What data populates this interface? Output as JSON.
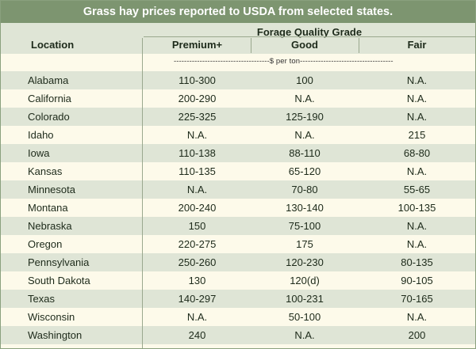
{
  "title": "Grass hay prices reported to USDA from selected states.",
  "header": {
    "location": "Location",
    "group": "Forage Quality Grade",
    "grades": [
      "Premium+",
      "Good",
      "Fair"
    ]
  },
  "units": "-------------------------------------$ per ton------------------------------------",
  "rows": [
    {
      "location": "Alabama",
      "premium": "110-300",
      "good": "100",
      "fair": "N.A."
    },
    {
      "location": "California",
      "premium": "200-290",
      "good": "N.A.",
      "fair": "N.A."
    },
    {
      "location": "Colorado",
      "premium": "225-325",
      "good": "125-190",
      "fair": "N.A."
    },
    {
      "location": "Idaho",
      "premium": "N.A.",
      "good": "N.A.",
      "fair": "215"
    },
    {
      "location": "Iowa",
      "premium": "110-138",
      "good": "88-110",
      "fair": "68-80"
    },
    {
      "location": "Kansas",
      "premium": "110-135",
      "good": "65-120",
      "fair": "N.A."
    },
    {
      "location": "Minnesota",
      "premium": "N.A.",
      "good": "70-80",
      "fair": "55-65"
    },
    {
      "location": "Montana",
      "premium": "200-240",
      "good": "130-140",
      "fair": "100-135"
    },
    {
      "location": "Nebraska",
      "premium": "150",
      "good": "75-100",
      "fair": "N.A."
    },
    {
      "location": "Oregon",
      "premium": "220-275",
      "good": "175",
      "fair": "N.A."
    },
    {
      "location": "Pennsylvania",
      "premium": "250-260",
      "good": "120-230",
      "fair": "80-135"
    },
    {
      "location": "South Dakota",
      "premium": "130",
      "good": "120(d)",
      "fair": "90-105"
    },
    {
      "location": "Texas",
      "premium": "140-297",
      "good": "100-231",
      "fair": "70-165"
    },
    {
      "location": "Wisconsin",
      "premium": "N.A.",
      "good": "50-100",
      "fair": "N.A."
    },
    {
      "location": "Washington",
      "premium": "240",
      "good": "N.A.",
      "fair": "200"
    }
  ],
  "colors": {
    "title_bg": "#7d9570",
    "shaded_row": "#dfe5d6",
    "plain_row": "#fdfaea",
    "text": "#1d2a1a"
  }
}
